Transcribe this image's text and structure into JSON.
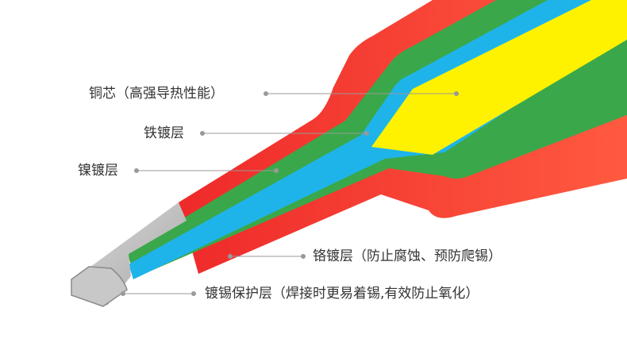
{
  "labels": [
    "铜芯（高强导热性能）",
    "铁镀层",
    "镍镀层",
    "铬镀层（防止腐蚀、预防爬锡）",
    "镀锡保护层（焊接时更易着锡,有效防止氧化）"
  ]
}
